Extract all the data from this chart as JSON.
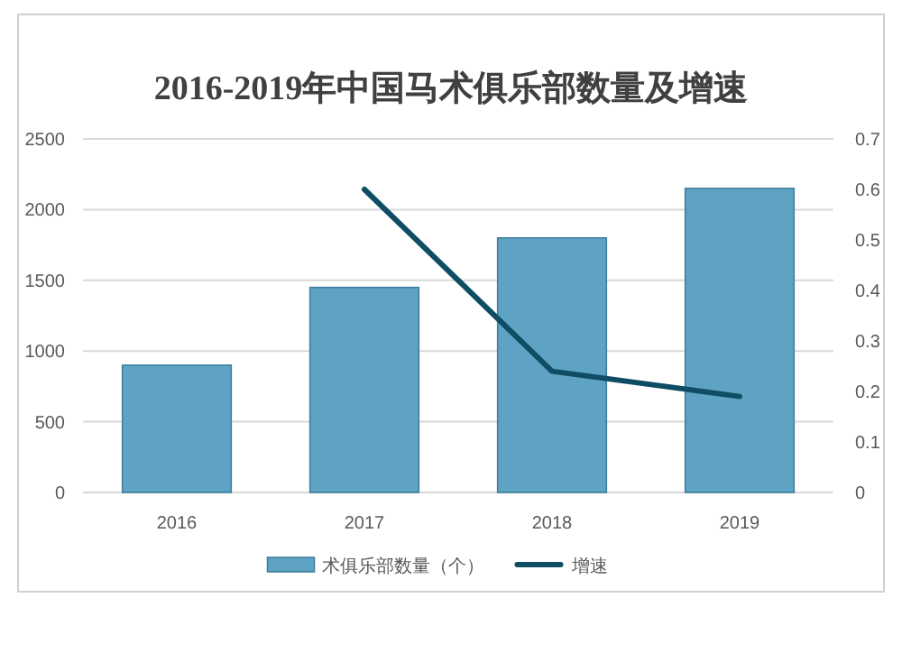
{
  "chart_data": {
    "type": "bar",
    "title": "2016-2019年中国马术俱乐部数量及增速",
    "categories": [
      "2016",
      "2017",
      "2018",
      "2019"
    ],
    "series": [
      {
        "name": "术俱乐部数量（个）",
        "color": "#5fa3c4",
        "values": [
          900,
          1450,
          1800,
          2150
        ]
      },
      {
        "name": "增速",
        "type": "line",
        "axis": "y2",
        "color": "#0e4d64",
        "values": [
          null,
          0.6,
          0.24,
          0.19
        ]
      }
    ],
    "ylim": [
      0,
      2500
    ],
    "yticks": [
      0,
      500,
      1000,
      1500,
      2000,
      2500
    ],
    "y2lim": [
      0,
      0.7
    ],
    "y2ticks": [
      0,
      0.1,
      0.2,
      0.3,
      0.4,
      0.5,
      0.6,
      0.7
    ],
    "grid": "y",
    "legend": "bottom",
    "marker": "none"
  }
}
